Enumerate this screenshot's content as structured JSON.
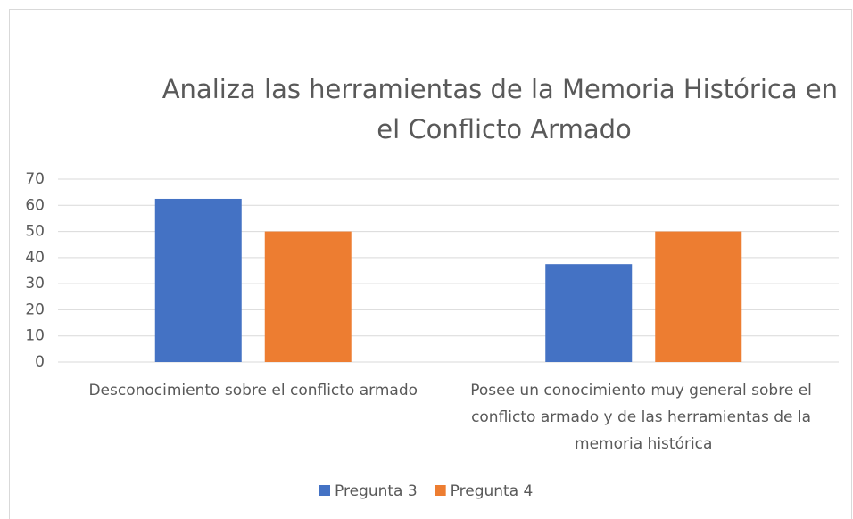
{
  "chart_data": {
    "type": "bar",
    "title": "Analiza las herramientas de la Memoria Histórica en el Conflicto Armado",
    "categories": [
      "Desconocimiento sobre el conflicto armado",
      "Posee un conocimiento muy general sobre el conflicto armado y de las herramientas de la memoria histórica"
    ],
    "series": [
      {
        "name": "Pregunta 3",
        "color": "#4472c4",
        "values": [
          62.5,
          37.5
        ]
      },
      {
        "name": "Pregunta 4",
        "color": "#ed7d31",
        "values": [
          50,
          50
        ]
      }
    ],
    "ylim": [
      0,
      70
    ],
    "yticks": [
      0,
      10,
      20,
      30,
      40,
      50,
      60,
      70
    ],
    "grid": true,
    "legend": "bottom"
  }
}
